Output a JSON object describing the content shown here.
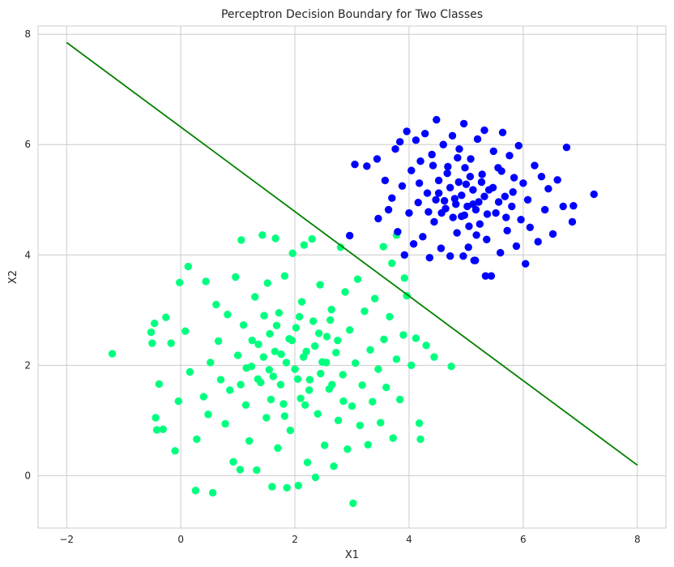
{
  "chart_data": {
    "type": "scatter",
    "title": "Perceptron Decision Boundary for Two Classes",
    "xlabel": "X1",
    "ylabel": "X2",
    "xlim": [
      -2.5,
      8.5
    ],
    "ylim": [
      -0.95,
      8.15
    ],
    "xticks": [
      -2,
      0,
      2,
      4,
      6,
      8
    ],
    "xtick_labels": [
      "−2",
      "0",
      "2",
      "4",
      "6",
      "8"
    ],
    "yticks": [
      0,
      2,
      4,
      6,
      8
    ],
    "ytick_labels": [
      "0",
      "2",
      "4",
      "6",
      "8"
    ],
    "grid": true,
    "series": [
      {
        "color": "#00ff7f",
        "points": [
          [
            -1.2,
            2.21
          ],
          [
            -0.52,
            2.6
          ],
          [
            -0.5,
            2.4
          ],
          [
            -0.46,
            2.76
          ],
          [
            -0.44,
            1.05
          ],
          [
            -0.42,
            0.83
          ],
          [
            -0.38,
            1.66
          ],
          [
            -0.31,
            0.84
          ],
          [
            -0.26,
            2.87
          ],
          [
            -0.17,
            2.4
          ],
          [
            -0.1,
            0.45
          ],
          [
            -0.04,
            1.35
          ],
          [
            -0.02,
            3.5
          ],
          [
            0.08,
            2.62
          ],
          [
            0.13,
            3.79
          ],
          [
            0.16,
            1.88
          ],
          [
            0.26,
            -0.27
          ],
          [
            0.28,
            0.66
          ],
          [
            0.4,
            1.43
          ],
          [
            0.44,
            3.52
          ],
          [
            0.48,
            1.11
          ],
          [
            0.52,
            2.05
          ],
          [
            0.56,
            -0.31
          ],
          [
            0.62,
            3.1
          ],
          [
            0.66,
            2.44
          ],
          [
            0.7,
            1.74
          ],
          [
            0.78,
            0.94
          ],
          [
            0.82,
            2.92
          ],
          [
            0.86,
            1.55
          ],
          [
            0.92,
            0.25
          ],
          [
            0.96,
            3.6
          ],
          [
            1.0,
            2.18
          ],
          [
            1.04,
            0.11
          ],
          [
            1.06,
            4.27
          ],
          [
            1.1,
            2.73
          ],
          [
            1.14,
            1.28
          ],
          [
            1.2,
            0.63
          ],
          [
            1.24,
            1.98
          ],
          [
            1.3,
            3.24
          ],
          [
            1.33,
            0.1
          ],
          [
            1.36,
            2.38
          ],
          [
            1.4,
            1.69
          ],
          [
            1.43,
            4.36
          ],
          [
            1.46,
            2.9
          ],
          [
            1.5,
            1.05
          ],
          [
            1.52,
            3.49
          ],
          [
            1.56,
            2.57
          ],
          [
            1.6,
            -0.2
          ],
          [
            1.62,
            1.8
          ],
          [
            1.66,
            4.3
          ],
          [
            1.7,
            0.5
          ],
          [
            1.72,
            2.95
          ],
          [
            1.76,
            2.2
          ],
          [
            1.8,
            1.3
          ],
          [
            1.82,
            3.62
          ],
          [
            1.86,
            -0.22
          ],
          [
            1.9,
            2.48
          ],
          [
            1.92,
            0.82
          ],
          [
            1.96,
            4.03
          ],
          [
            2.0,
            1.93
          ],
          [
            2.02,
            2.68
          ],
          [
            2.06,
            -0.18
          ],
          [
            2.1,
            1.4
          ],
          [
            2.12,
            3.15
          ],
          [
            2.16,
            4.18
          ],
          [
            2.2,
            2.25
          ],
          [
            2.22,
            0.24
          ],
          [
            2.26,
            1.74
          ],
          [
            2.3,
            4.29
          ],
          [
            2.32,
            2.8
          ],
          [
            2.36,
            -0.03
          ],
          [
            2.4,
            1.12
          ],
          [
            2.44,
            3.46
          ],
          [
            2.48,
            2.06
          ],
          [
            2.52,
            0.55
          ],
          [
            2.56,
            2.52
          ],
          [
            2.6,
            1.57
          ],
          [
            2.64,
            3.01
          ],
          [
            2.68,
            0.17
          ],
          [
            2.72,
            2.23
          ],
          [
            2.76,
            1.0
          ],
          [
            2.8,
            4.14
          ],
          [
            2.84,
            1.83
          ],
          [
            2.88,
            3.33
          ],
          [
            2.92,
            0.48
          ],
          [
            2.96,
            2.64
          ],
          [
            3.0,
            1.26
          ],
          [
            3.02,
            -0.5
          ],
          [
            3.06,
            2.04
          ],
          [
            3.1,
            3.56
          ],
          [
            3.14,
            0.91
          ],
          [
            3.18,
            1.64
          ],
          [
            3.22,
            2.98
          ],
          [
            3.28,
            0.56
          ],
          [
            3.32,
            2.28
          ],
          [
            3.36,
            1.34
          ],
          [
            3.4,
            3.21
          ],
          [
            3.46,
            1.93
          ],
          [
            3.5,
            0.96
          ],
          [
            3.56,
            2.47
          ],
          [
            3.6,
            1.6
          ],
          [
            3.66,
            2.88
          ],
          [
            3.72,
            0.68
          ],
          [
            3.78,
            2.11
          ],
          [
            3.84,
            1.38
          ],
          [
            3.9,
            2.55
          ],
          [
            3.96,
            3.26
          ],
          [
            4.04,
            2.0
          ],
          [
            4.12,
            2.49
          ],
          [
            4.18,
            0.95
          ],
          [
            4.2,
            0.66
          ],
          [
            4.3,
            2.36
          ],
          [
            4.44,
            2.15
          ],
          [
            4.74,
            1.98
          ],
          [
            3.78,
            4.36
          ],
          [
            3.92,
            3.58
          ],
          [
            3.55,
            4.15
          ],
          [
            3.7,
            3.85
          ],
          [
            1.55,
            1.92
          ],
          [
            1.65,
            2.25
          ],
          [
            1.75,
            1.65
          ],
          [
            1.85,
            2.05
          ],
          [
            1.95,
            2.45
          ],
          [
            2.05,
            1.75
          ],
          [
            2.15,
            2.15
          ],
          [
            2.25,
            1.55
          ],
          [
            2.35,
            2.35
          ],
          [
            2.45,
            1.85
          ],
          [
            1.45,
            2.15
          ],
          [
            1.35,
            1.75
          ],
          [
            2.55,
            2.05
          ],
          [
            2.65,
            1.65
          ],
          [
            1.25,
            2.45
          ],
          [
            1.15,
            1.95
          ],
          [
            2.75,
            2.45
          ],
          [
            2.85,
            1.35
          ],
          [
            1.05,
            1.65
          ],
          [
            1.68,
            2.72
          ],
          [
            2.42,
            2.58
          ],
          [
            2.18,
            1.28
          ],
          [
            1.82,
            1.08
          ],
          [
            1.58,
            1.38
          ],
          [
            2.62,
            2.82
          ],
          [
            2.08,
            2.88
          ]
        ]
      },
      {
        "color": "#0000ff",
        "points": [
          [
            2.96,
            4.35
          ],
          [
            3.05,
            5.64
          ],
          [
            3.26,
            5.61
          ],
          [
            3.44,
            5.74
          ],
          [
            3.46,
            4.66
          ],
          [
            3.58,
            5.35
          ],
          [
            3.64,
            4.82
          ],
          [
            3.7,
            5.03
          ],
          [
            3.76,
            5.92
          ],
          [
            3.8,
            4.42
          ],
          [
            3.84,
            6.05
          ],
          [
            3.88,
            5.25
          ],
          [
            3.92,
            4.0
          ],
          [
            3.96,
            6.24
          ],
          [
            4.0,
            4.76
          ],
          [
            4.04,
            5.53
          ],
          [
            4.08,
            4.2
          ],
          [
            4.12,
            6.08
          ],
          [
            4.16,
            4.95
          ],
          [
            4.2,
            5.7
          ],
          [
            4.24,
            4.33
          ],
          [
            4.28,
            6.2
          ],
          [
            4.32,
            5.12
          ],
          [
            4.36,
            3.95
          ],
          [
            4.4,
            5.82
          ],
          [
            4.44,
            4.6
          ],
          [
            4.48,
            6.45
          ],
          [
            4.52,
            5.35
          ],
          [
            4.56,
            4.12
          ],
          [
            4.6,
            6.0
          ],
          [
            4.64,
            4.84
          ],
          [
            4.68,
            5.6
          ],
          [
            4.72,
            3.98
          ],
          [
            4.76,
            6.16
          ],
          [
            4.8,
            5.02
          ],
          [
            4.84,
            4.4
          ],
          [
            4.88,
            5.92
          ],
          [
            4.92,
            4.7
          ],
          [
            4.96,
            6.38
          ],
          [
            5.0,
            5.28
          ],
          [
            5.04,
            4.14
          ],
          [
            5.08,
            5.74
          ],
          [
            5.12,
            4.92
          ],
          [
            5.16,
            3.9
          ],
          [
            5.2,
            6.1
          ],
          [
            5.24,
            4.56
          ],
          [
            5.28,
            5.46
          ],
          [
            5.32,
            6.26
          ],
          [
            5.36,
            4.28
          ],
          [
            5.4,
            5.18
          ],
          [
            5.44,
            3.62
          ],
          [
            5.48,
            5.88
          ],
          [
            5.52,
            4.76
          ],
          [
            5.56,
            5.58
          ],
          [
            5.6,
            4.04
          ],
          [
            5.64,
            6.22
          ],
          [
            5.68,
            5.06
          ],
          [
            5.72,
            4.44
          ],
          [
            5.76,
            5.8
          ],
          [
            5.8,
            4.88
          ],
          [
            5.84,
            5.4
          ],
          [
            5.88,
            4.16
          ],
          [
            5.92,
            5.98
          ],
          [
            5.96,
            4.64
          ],
          [
            6.0,
            5.3
          ],
          [
            6.04,
            3.84
          ],
          [
            6.08,
            5.0
          ],
          [
            6.12,
            4.5
          ],
          [
            6.2,
            5.62
          ],
          [
            6.26,
            4.24
          ],
          [
            6.32,
            5.42
          ],
          [
            6.38,
            4.82
          ],
          [
            6.44,
            5.2
          ],
          [
            6.52,
            4.38
          ],
          [
            6.6,
            5.36
          ],
          [
            6.7,
            4.88
          ],
          [
            6.76,
            5.95
          ],
          [
            6.86,
            4.6
          ],
          [
            6.88,
            4.89
          ],
          [
            7.24,
            5.1
          ],
          [
            5.34,
            3.62
          ],
          [
            4.95,
            3.98
          ],
          [
            5.14,
            3.9
          ],
          [
            4.52,
            5.12
          ],
          [
            4.62,
            4.98
          ],
          [
            4.72,
            5.22
          ],
          [
            4.82,
            4.92
          ],
          [
            4.92,
            5.08
          ],
          [
            5.02,
            4.88
          ],
          [
            5.12,
            5.18
          ],
          [
            5.22,
            4.96
          ],
          [
            5.32,
            5.06
          ],
          [
            4.87,
            5.32
          ],
          [
            4.97,
            4.72
          ],
          [
            5.07,
            5.42
          ],
          [
            5.17,
            4.82
          ],
          [
            4.77,
            4.68
          ],
          [
            5.27,
            5.32
          ],
          [
            4.67,
            5.48
          ],
          [
            5.37,
            4.74
          ],
          [
            4.57,
            4.76
          ],
          [
            5.47,
            5.22
          ],
          [
            4.47,
            5.0
          ],
          [
            5.57,
            4.96
          ],
          [
            4.98,
            5.58
          ],
          [
            5.05,
            4.52
          ],
          [
            4.42,
            5.62
          ],
          [
            5.62,
            5.52
          ],
          [
            4.34,
            4.78
          ],
          [
            5.7,
            4.68
          ],
          [
            4.85,
            5.76
          ],
          [
            5.18,
            4.36
          ],
          [
            4.18,
            5.3
          ],
          [
            5.82,
            5.14
          ]
        ]
      }
    ],
    "boundary_line": {
      "color": "#008000",
      "x": [
        -2,
        8
      ],
      "y": [
        7.85,
        0.19
      ]
    }
  }
}
